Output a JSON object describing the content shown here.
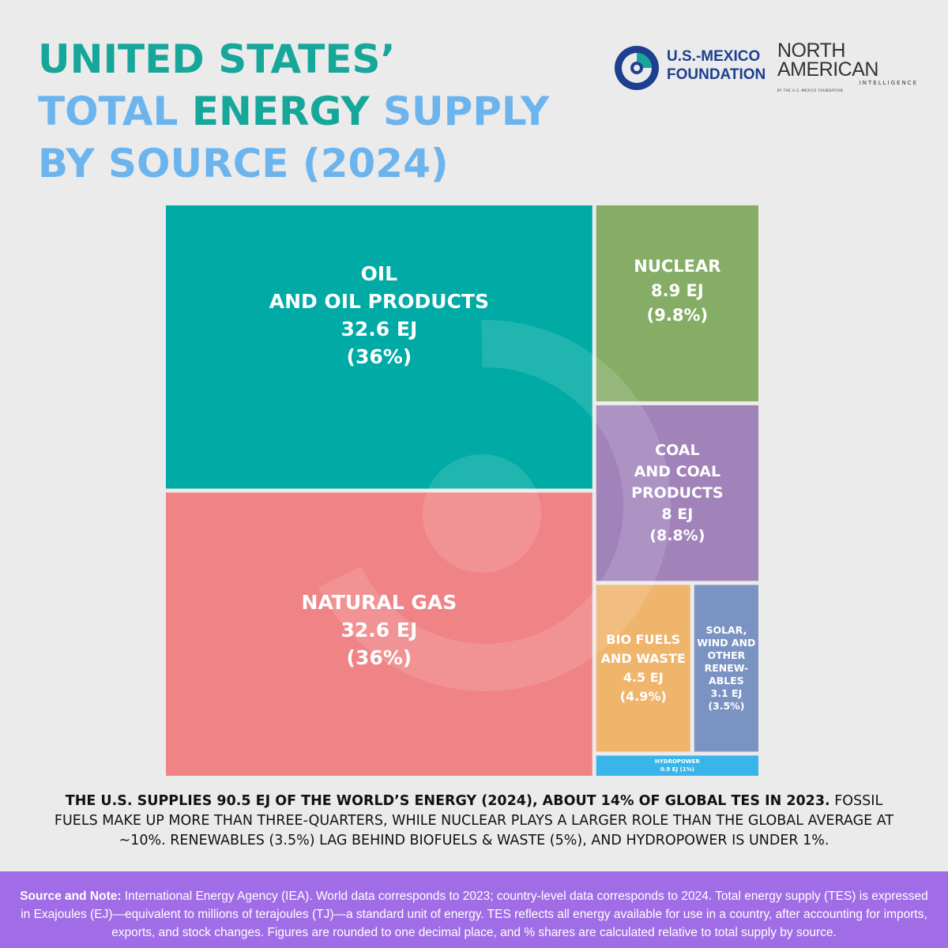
{
  "header": {
    "title_line1": "UNITED STATES’",
    "title_line2_a": "TOTAL ",
    "title_line2_b": "ENERGY",
    "title_line2_c": " SUPPLY",
    "title_line3": "BY SOURCE (2024)"
  },
  "logos": {
    "usmf_line1": "U.S.-MEXICO",
    "usmf_line2": "FOUNDATION",
    "nai_line1": "NORTH",
    "nai_line2": "AMERICAN",
    "nai_line3": "INTELLIGENCE",
    "nai_line4": "BY THE U.S.-MEXICO FOUNDATION"
  },
  "colors": {
    "oil": "#00aaa5",
    "gas": "#ef8385",
    "nuclear": "#86ad66",
    "coal": "#a183ba",
    "bio": "#efb56d",
    "renew": "#7b93c3",
    "hydro": "#3ab5e9",
    "title_teal": "#17a69a",
    "title_blue": "#6cb4ee",
    "footer": "#a16de6"
  },
  "chart_data": {
    "type": "treemap",
    "unit": "EJ",
    "items": [
      {
        "name": "OIL AND OIL PRODUCTS",
        "value": 32.6,
        "share": "36%",
        "label_lines": [
          "OIL",
          "AND OIL PRODUCTS",
          "32.6 EJ",
          "(36%)"
        ]
      },
      {
        "name": "NATURAL GAS",
        "value": 32.6,
        "share": "36%",
        "label_lines": [
          "NATURAL GAS",
          "32.6 EJ",
          "(36%)"
        ]
      },
      {
        "name": "NUCLEAR",
        "value": 8.9,
        "share": "9.8%",
        "label_lines": [
          "NUCLEAR",
          "8.9 EJ",
          "(9.8%)"
        ]
      },
      {
        "name": "COAL AND COAL PRODUCTS",
        "value": 8,
        "share": "8.8%",
        "label_lines": [
          "COAL",
          "AND COAL",
          "PRODUCTS",
          "8 EJ",
          "(8.8%)"
        ]
      },
      {
        "name": "BIO FUELS AND WASTE",
        "value": 4.5,
        "share": "4.9%",
        "label_lines": [
          "BIO FUELS",
          "AND WASTE",
          "4.5 EJ",
          "(4.9%)"
        ]
      },
      {
        "name": "SOLAR, WIND AND OTHER RENEWABLES",
        "value": 3.1,
        "share": "3.5%",
        "label_lines": [
          "SOLAR,",
          "WIND AND",
          "OTHER",
          "RENEW-",
          "ABLES",
          "3.1 EJ",
          "(3.5%)"
        ]
      },
      {
        "name": "HYDROPOWER",
        "value": 0.9,
        "share": "1%",
        "label_lines": [
          "HYDROPOWER",
          "0.9 EJ  (1%)"
        ]
      }
    ]
  },
  "summary": {
    "bold": "THE U.S. SUPPLIES 90.5 EJ OF THE WORLD’S ENERGY (2024), ABOUT 14% OF GLOBAL TES IN 2023.",
    "rest": " FOSSIL FUELS MAKE UP MORE THAN THREE-QUARTERS, WHILE NUCLEAR PLAYS A LARGER ROLE THAN THE GLOBAL AVERAGE AT ~10%. RENEWABLES (3.5%) LAG BEHIND BIOFUELS & WASTE (5%), AND HYDROPOWER IS UNDER 1%."
  },
  "footer": {
    "label": "Source and Note:",
    "text": " International Energy Agency (IEA). World data corresponds to 2023; country-level data corresponds to 2024. Total energy supply (TES) is expressed in Exajoules (EJ)—equivalent to millions of terajoules (TJ)—a standard unit of energy. TES reflects all energy available for use in a country, after accounting for imports, exports, and stock changes. Figures are rounded to one decimal place, and % shares are calculated relative to total supply by source."
  }
}
